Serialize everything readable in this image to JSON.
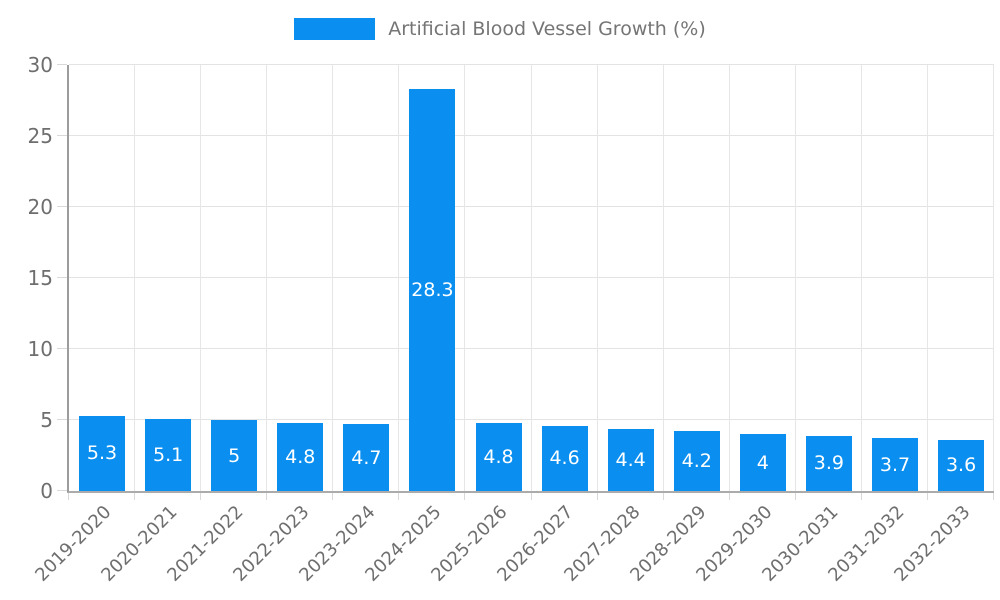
{
  "chart_data": {
    "type": "bar",
    "legend_label": "Artificial Blood Vessel Growth (%)",
    "legend_position": "top-center",
    "categories": [
      "2019-2020",
      "2020-2021",
      "2021-2022",
      "2022-2023",
      "2023-2024",
      "2024-2025",
      "2025-2026",
      "2026-2027",
      "2027-2028",
      "2028-2029",
      "2029-2030",
      "2030-2031",
      "2031-2032",
      "2032-2033"
    ],
    "values": [
      5.3,
      5.1,
      5.0,
      4.8,
      4.7,
      28.3,
      4.8,
      4.6,
      4.4,
      4.2,
      4.0,
      3.9,
      3.7,
      3.6
    ],
    "value_labels": [
      "5.3",
      "5.1",
      "5",
      "4.8",
      "4.7",
      "28.3",
      "4.8",
      "4.6",
      "4.4",
      "4.2",
      "4",
      "3.9",
      "3.7",
      "3.6"
    ],
    "xlabel": "",
    "ylabel": "",
    "ylim": [
      0,
      30
    ],
    "yticks": [
      0,
      5,
      10,
      15,
      20,
      25,
      30
    ],
    "grid": true,
    "colors": {
      "bar": "#0a8ff0",
      "value_label": "#ffffff",
      "tick_text": "#6e6e6e",
      "legend_text": "#757575",
      "gridline": "#e3e3e3",
      "axis_line": "#a0a0a0",
      "background": "#ffffff"
    }
  }
}
